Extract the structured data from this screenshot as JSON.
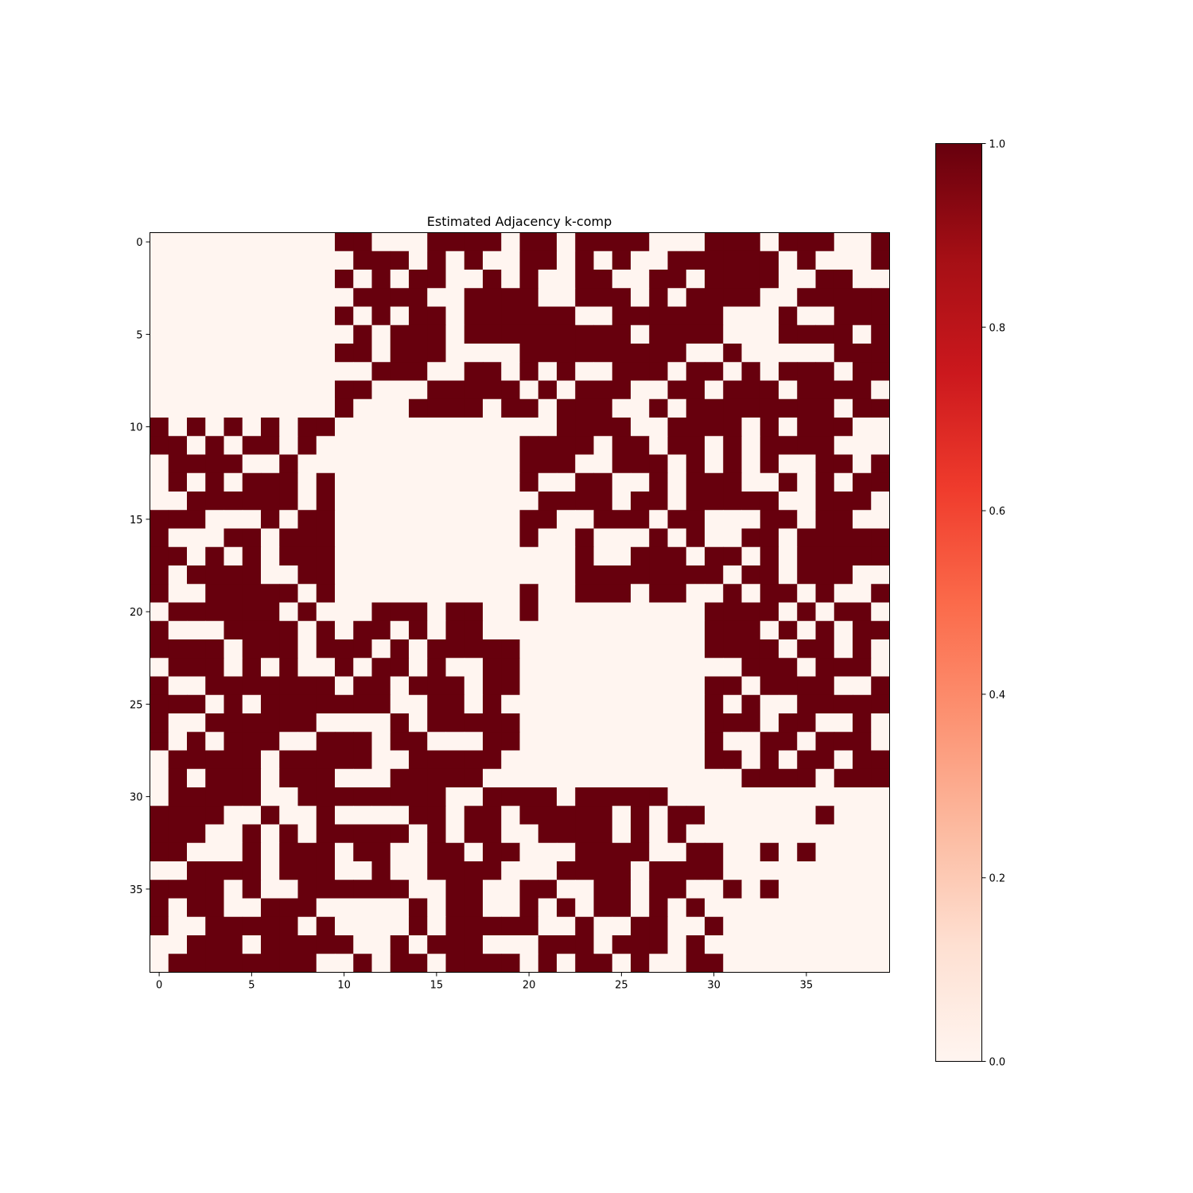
{
  "chart_data": {
    "type": "heatmap",
    "title": "Estimated Adjacency k-comp",
    "xlabel": "",
    "ylabel": "",
    "n": 40,
    "x_ticks": [
      0,
      5,
      10,
      15,
      20,
      25,
      30,
      35
    ],
    "y_ticks": [
      0,
      5,
      10,
      15,
      20,
      25,
      30,
      35
    ],
    "colormap": "Reds",
    "vmin": 0.0,
    "vmax": 1.0,
    "colorbar_ticks": [
      "0.0",
      "0.2",
      "0.4",
      "0.6",
      "0.8",
      "1.0"
    ],
    "low_color": "#fff5f0",
    "high_color": "#67000d",
    "matrix": [
      "0000000000110001111011011110001110111001",
      "0000000000011101010011010100111111010001",
      "0000000000101011001010011001101111001100",
      "0000000000011110011110011101011110011111",
      "0000000000101011011111100111111000100111",
      "0000000000010111011111111101111000111101",
      "0000000000110111000011111111100100000111",
      "0000000000001110011010100111011010111011",
      "0000000000110001111101011100110111011110",
      "0000000000100011110110111001011111111011",
      "1010101011000000000000111100111101011100",
      "1101011010000000000011110110110101111000",
      "0111100100000000000011100111010101001101",
      "0101011101000000000010011001011100101011",
      "0011111101000000000001111011011111001110",
      "1110001011000000000011001110110001101100",
      "1000110111000000000010010001010011011111",
      "1101010111000000000000010011101101011111",
      "1011110011000000000000011111111011011100",
      "1001111101000000000010011101100101101001",
      "0111111010001110110010000000001111010110",
      "1000111101011010110000000000001110101011",
      "1111011101110101111100000000001111011010",
      "0111010100101101001100000000000011101110",
      "1001111111011011101100000000001101111001",
      "1110101111111001101000000000001010011111",
      "1001111110000101111100000000001110110010",
      "1010111001110110001100000000001001101110",
      "0111110111110011111000000000001101011011",
      "0101110111000111110000000000000011110111",
      "0111110011111111001111011111000000000000",
      "1111001001000011011011111010110000001000",
      "1110010101111101011001111010100000000000",
      "1100010111011001101100011110011001010000",
      "0011110111001001111000111101111000000000",
      "1111010011111100110011001101100101000000",
      "1011001110000010110010101101010000000000",
      "1001111101000010111110010011001000000000",
      "0011101111100101110001110111010000000000",
      "0111111110010110111101011010011000000000"
    ]
  }
}
